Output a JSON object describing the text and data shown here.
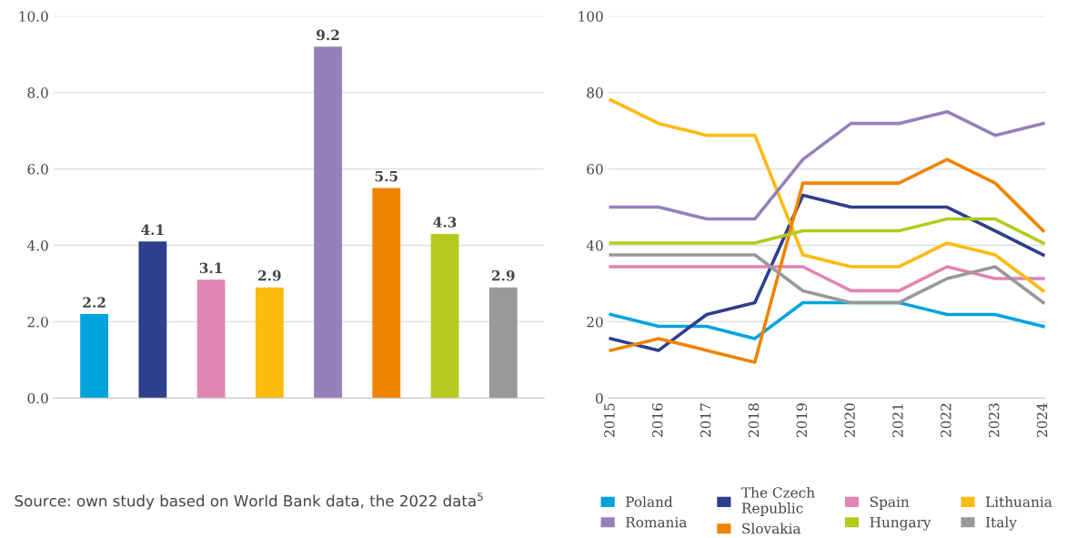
{
  "chart_data": [
    {
      "type": "bar",
      "categories": [
        null,
        null,
        null,
        null,
        null,
        null,
        null,
        null
      ],
      "values": [
        2.2,
        4.1,
        3.1,
        2.9,
        9.2,
        5.5,
        4.3,
        2.9
      ],
      "colors": [
        "#00a3dc",
        "#2e3f8c",
        "#e085b5",
        "#fbbb0f",
        "#9580bb",
        "#ee8400",
        "#b3cb1e",
        "#999999"
      ],
      "ylim": [
        0,
        10
      ],
      "yticks": [
        {
          "value": 0,
          "label": "0.0"
        },
        {
          "value": 2,
          "label": "2.0"
        },
        {
          "value": 4,
          "label": "4.0"
        },
        {
          "value": 6,
          "label": "6.0"
        },
        {
          "value": 8,
          "label": "8.0"
        },
        {
          "value": 10,
          "label": "10.0"
        }
      ],
      "grid": "y",
      "data_labels": true,
      "annotations": [
        "Source: own study based on World Bank data, the 2022 data$^{5}$"
      ]
    },
    {
      "type": "line",
      "categories": [
        "2015",
        "2016",
        "2017",
        "2018",
        "2019",
        "2020",
        "2021",
        "2022",
        "2023",
        "2024"
      ],
      "ylim": [
        0,
        100
      ],
      "yticks": [
        0,
        20,
        40,
        60,
        80,
        100
      ],
      "grid": "y",
      "legend": "bottom",
      "series": [
        {
          "name": "Poland",
          "color": "#00a3dc",
          "values": [
            21.9,
            18.8,
            18.8,
            15.6,
            25.0,
            25.0,
            25.0,
            21.9,
            21.9,
            18.8
          ]
        },
        {
          "name": "The Czech\nRepublic",
          "color": "#2e3f8c",
          "values": [
            15.6,
            12.5,
            21.9,
            25.0,
            53.1,
            50.0,
            50.0,
            50.0,
            43.8,
            37.5
          ]
        },
        {
          "name": "Spain",
          "color": "#e085b5",
          "values": [
            34.4,
            34.4,
            34.4,
            34.4,
            34.4,
            28.1,
            28.1,
            34.4,
            31.3,
            31.3
          ]
        },
        {
          "name": "Lithuania",
          "color": "#fbbb0f",
          "values": [
            78.1,
            71.9,
            68.8,
            68.8,
            37.5,
            34.4,
            34.4,
            40.6,
            37.5,
            28.1
          ]
        },
        {
          "name": "Romania",
          "color": "#9580bb",
          "values": [
            50.0,
            50.0,
            46.9,
            46.9,
            62.5,
            71.9,
            71.9,
            75.0,
            68.8,
            71.9
          ]
        },
        {
          "name": "Slovakia",
          "color": "#ee8400",
          "values": [
            12.5,
            15.6,
            12.5,
            9.4,
            56.3,
            56.3,
            56.3,
            62.5,
            56.3,
            43.8
          ]
        },
        {
          "name": "Hungary",
          "color": "#b3cb1e",
          "values": [
            40.6,
            40.6,
            40.6,
            40.6,
            43.8,
            43.8,
            43.8,
            46.9,
            46.9,
            40.6
          ]
        },
        {
          "name": "Italy",
          "color": "#999999",
          "values": [
            37.5,
            37.5,
            37.5,
            37.5,
            28.1,
            25.0,
            25.0,
            31.3,
            34.4,
            25.0
          ]
        }
      ]
    }
  ]
}
